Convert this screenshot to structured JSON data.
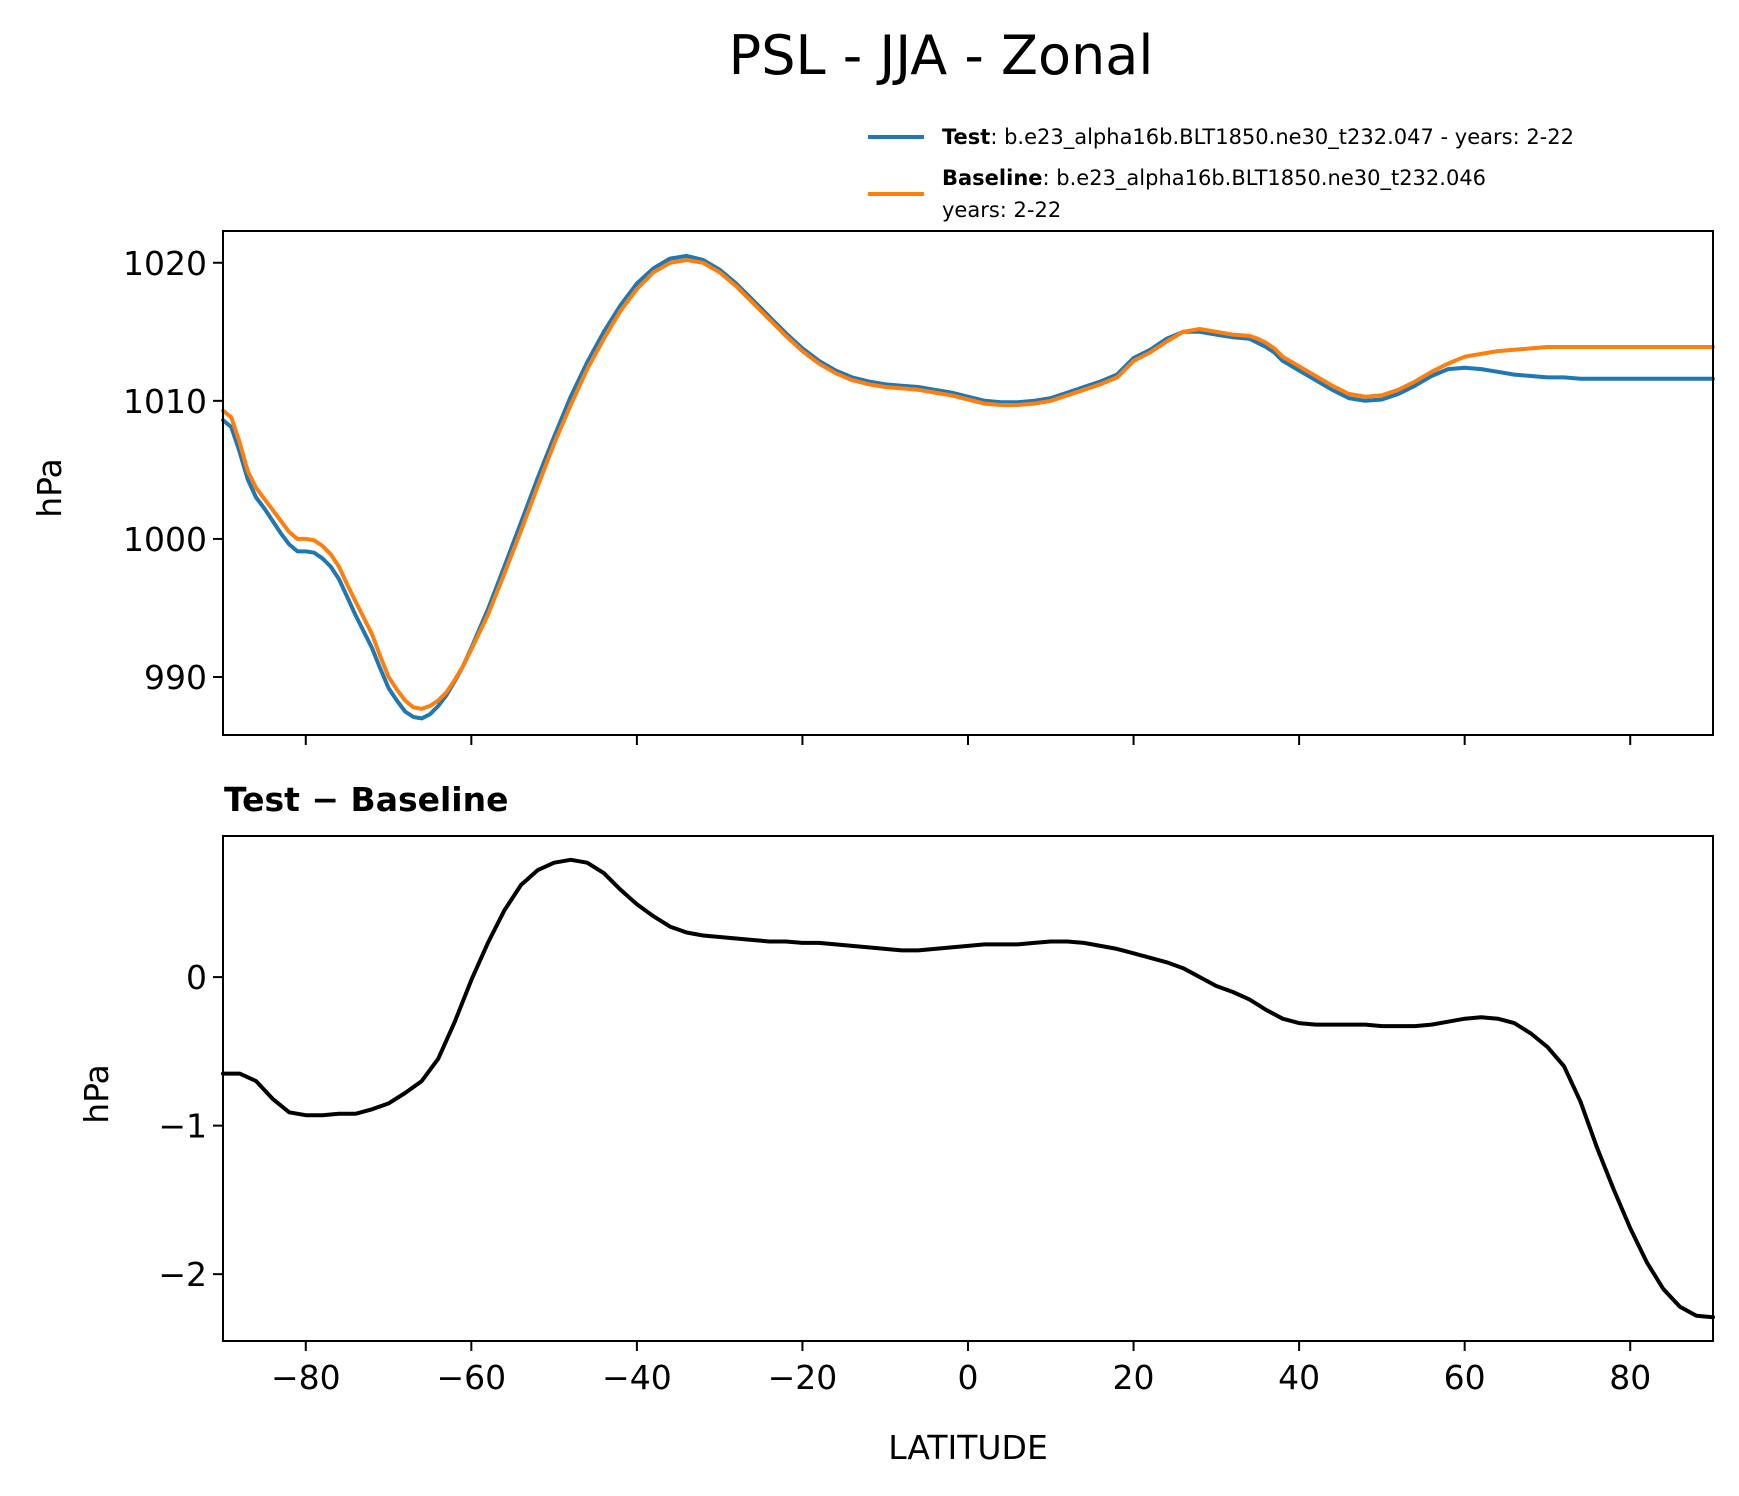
{
  "title": "PSL - JJA - Zonal",
  "colors": {
    "test": "#1f77b4",
    "baseline": "#ff7f0e",
    "diff": "#000000"
  },
  "legend": {
    "test_label": "Test",
    "test_text": ": b.e23_alpha16b.BLT1850.ne30_t232.047 - years: 2-22",
    "baseline_label": "Baseline",
    "baseline_text": ": b.e23_alpha16b.BLT1850.ne30_t232.046",
    "baseline_text2": "years: 2-22"
  },
  "chart_data": [
    {
      "type": "line",
      "ylabel": "hPa",
      "xlim": [
        -90,
        90
      ],
      "ylim": [
        985.8,
        1022.3
      ],
      "xticks": [
        -80,
        -60,
        -40,
        -20,
        0,
        20,
        40,
        60,
        80
      ],
      "yticks": [
        990,
        1000,
        1010,
        1020
      ],
      "yticklabels": [
        "990",
        "1000",
        "1010",
        "1020"
      ],
      "legend_position": "above-right",
      "series": [
        {
          "name": "Test",
          "x": [
            -90,
            -89,
            -88,
            -87,
            -86,
            -85,
            -84,
            -83,
            -82,
            -81,
            -80,
            -79,
            -78,
            -77,
            -76,
            -75,
            -74,
            -73,
            -72,
            -71,
            -70,
            -69,
            -68,
            -67,
            -66,
            -65,
            -64,
            -63,
            -62,
            -61,
            -60,
            -58,
            -56,
            -54,
            -52,
            -50,
            -48,
            -46,
            -44,
            -42,
            -40,
            -38,
            -36,
            -34,
            -32,
            -30,
            -28,
            -26,
            -24,
            -22,
            -20,
            -18,
            -16,
            -14,
            -12,
            -10,
            -8,
            -6,
            -4,
            -2,
            0,
            2,
            4,
            6,
            8,
            10,
            12,
            14,
            16,
            18,
            20,
            22,
            24,
            26,
            28,
            30,
            32,
            34,
            35,
            36,
            37,
            38,
            40,
            42,
            44,
            46,
            48,
            50,
            52,
            54,
            56,
            58,
            60,
            62,
            64,
            66,
            68,
            70,
            72,
            74,
            76,
            78,
            80,
            82,
            84,
            86,
            88,
            90
          ],
          "y": [
            1008.6,
            1008.1,
            1006.3,
            1004.3,
            1003.0,
            1002.2,
            1001.3,
            1000.4,
            999.6,
            999.1,
            999.1,
            999.0,
            998.6,
            998.0,
            997.1,
            995.8,
            994.5,
            993.3,
            992.1,
            990.6,
            989.2,
            988.3,
            987.5,
            987.1,
            987.0,
            987.3,
            987.9,
            988.7,
            989.7,
            990.8,
            992.1,
            994.9,
            998.0,
            1001.2,
            1004.4,
            1007.4,
            1010.3,
            1012.8,
            1015.0,
            1016.9,
            1018.5,
            1019.6,
            1020.3,
            1020.5,
            1020.2,
            1019.5,
            1018.5,
            1017.3,
            1016.1,
            1014.9,
            1013.8,
            1012.9,
            1012.2,
            1011.7,
            1011.4,
            1011.2,
            1011.1,
            1011.0,
            1010.8,
            1010.6,
            1010.3,
            1010.0,
            1009.9,
            1009.9,
            1010.0,
            1010.2,
            1010.6,
            1011.0,
            1011.4,
            1011.9,
            1013.1,
            1013.7,
            1014.5,
            1015.0,
            1015.0,
            1014.8,
            1014.6,
            1014.5,
            1014.2,
            1013.9,
            1013.5,
            1012.9,
            1012.2,
            1011.5,
            1010.8,
            1010.2,
            1010.0,
            1010.1,
            1010.5,
            1011.1,
            1011.8,
            1012.3,
            1012.4,
            1012.3,
            1012.1,
            1011.9,
            1011.8,
            1011.7,
            1011.7,
            1011.6,
            1011.6,
            1011.6,
            1011.6,
            1011.6,
            1011.6,
            1011.6,
            1011.6,
            1011.6
          ]
        },
        {
          "name": "Baseline",
          "x": [
            -90,
            -89,
            -88,
            -87,
            -86,
            -85,
            -84,
            -83,
            -82,
            -81,
            -80,
            -79,
            -78,
            -77,
            -76,
            -75,
            -74,
            -73,
            -72,
            -71,
            -70,
            -69,
            -68,
            -67,
            -66,
            -65,
            -64,
            -63,
            -62,
            -61,
            -60,
            -58,
            -56,
            -54,
            -52,
            -50,
            -48,
            -46,
            -44,
            -42,
            -40,
            -38,
            -36,
            -34,
            -32,
            -30,
            -28,
            -26,
            -24,
            -22,
            -20,
            -18,
            -16,
            -14,
            -12,
            -10,
            -8,
            -6,
            -4,
            -2,
            0,
            2,
            4,
            6,
            8,
            10,
            12,
            14,
            16,
            18,
            20,
            22,
            24,
            26,
            28,
            30,
            32,
            34,
            35,
            36,
            37,
            38,
            40,
            42,
            44,
            46,
            48,
            50,
            52,
            54,
            56,
            58,
            60,
            62,
            64,
            66,
            68,
            70,
            72,
            74,
            76,
            78,
            80,
            82,
            84,
            86,
            88,
            90
          ],
          "y": [
            1009.3,
            1008.8,
            1007.0,
            1004.9,
            1003.7,
            1002.9,
            1002.1,
            1001.3,
            1000.5,
            1000.0,
            1000.0,
            999.9,
            999.5,
            998.9,
            998.0,
            996.7,
            995.5,
            994.3,
            993.1,
            991.5,
            990.0,
            989.1,
            988.3,
            987.8,
            987.7,
            987.9,
            988.3,
            988.9,
            989.8,
            990.8,
            992.0,
            994.5,
            997.5,
            1000.6,
            1003.8,
            1006.9,
            1009.7,
            1012.3,
            1014.5,
            1016.5,
            1018.1,
            1019.3,
            1020.0,
            1020.2,
            1020.0,
            1019.3,
            1018.3,
            1017.1,
            1015.9,
            1014.7,
            1013.6,
            1012.7,
            1012.0,
            1011.5,
            1011.2,
            1011.0,
            1010.9,
            1010.8,
            1010.6,
            1010.4,
            1010.1,
            1009.8,
            1009.7,
            1009.7,
            1009.8,
            1010.0,
            1010.4,
            1010.8,
            1011.2,
            1011.7,
            1012.9,
            1013.5,
            1014.3,
            1015.0,
            1015.2,
            1015.0,
            1014.8,
            1014.7,
            1014.5,
            1014.2,
            1013.8,
            1013.2,
            1012.5,
            1011.8,
            1011.1,
            1010.5,
            1010.3,
            1010.4,
            1010.8,
            1011.4,
            1012.1,
            1012.7,
            1013.2,
            1013.4,
            1013.6,
            1013.7,
            1013.8,
            1013.9,
            1013.9,
            1013.9,
            1013.9,
            1013.9,
            1013.9,
            1013.9,
            1013.9,
            1013.9,
            1013.9,
            1013.9
          ]
        }
      ]
    },
    {
      "type": "line",
      "title": "Test − Baseline",
      "xlabel": "LATITUDE",
      "ylabel": "hPa",
      "xlim": [
        -90,
        90
      ],
      "ylim": [
        -2.45,
        0.95
      ],
      "xticks": [
        -80,
        -60,
        -40,
        -20,
        0,
        20,
        40,
        60,
        80
      ],
      "xticklabels": [
        "−80",
        "−60",
        "−40",
        "−20",
        "0",
        "20",
        "40",
        "60",
        "80"
      ],
      "yticks": [
        -2,
        -1,
        0
      ],
      "yticklabels": [
        "−2",
        "−1",
        "0"
      ],
      "series": [
        {
          "name": "Test − Baseline",
          "x": [
            -90,
            -88,
            -86,
            -84,
            -82,
            -80,
            -78,
            -76,
            -74,
            -72,
            -70,
            -68,
            -66,
            -64,
            -62,
            -60,
            -58,
            -56,
            -54,
            -52,
            -50,
            -48,
            -46,
            -44,
            -42,
            -40,
            -38,
            -36,
            -34,
            -32,
            -30,
            -28,
            -26,
            -24,
            -22,
            -20,
            -18,
            -16,
            -14,
            -12,
            -10,
            -8,
            -6,
            -4,
            -2,
            0,
            2,
            4,
            6,
            8,
            10,
            12,
            14,
            16,
            18,
            20,
            22,
            24,
            26,
            28,
            30,
            32,
            34,
            36,
            38,
            40,
            42,
            44,
            46,
            48,
            50,
            52,
            54,
            56,
            58,
            60,
            62,
            64,
            66,
            68,
            70,
            72,
            74,
            76,
            78,
            80,
            82,
            84,
            86,
            88,
            90
          ],
          "y": [
            -0.65,
            -0.65,
            -0.7,
            -0.82,
            -0.91,
            -0.93,
            -0.93,
            -0.92,
            -0.92,
            -0.89,
            -0.85,
            -0.78,
            -0.7,
            -0.55,
            -0.3,
            -0.02,
            0.23,
            0.45,
            0.62,
            0.72,
            0.77,
            0.79,
            0.77,
            0.7,
            0.59,
            0.49,
            0.41,
            0.34,
            0.3,
            0.28,
            0.27,
            0.26,
            0.25,
            0.24,
            0.24,
            0.23,
            0.23,
            0.22,
            0.21,
            0.2,
            0.19,
            0.18,
            0.18,
            0.19,
            0.2,
            0.21,
            0.22,
            0.22,
            0.22,
            0.23,
            0.24,
            0.24,
            0.23,
            0.21,
            0.19,
            0.16,
            0.13,
            0.1,
            0.06,
            0.0,
            -0.06,
            -0.1,
            -0.15,
            -0.22,
            -0.28,
            -0.31,
            -0.32,
            -0.32,
            -0.32,
            -0.32,
            -0.33,
            -0.33,
            -0.33,
            -0.32,
            -0.3,
            -0.28,
            -0.27,
            -0.28,
            -0.31,
            -0.38,
            -0.47,
            -0.6,
            -0.84,
            -1.15,
            -1.43,
            -1.69,
            -1.92,
            -2.1,
            -2.22,
            -2.28,
            -2.29
          ]
        }
      ]
    }
  ]
}
